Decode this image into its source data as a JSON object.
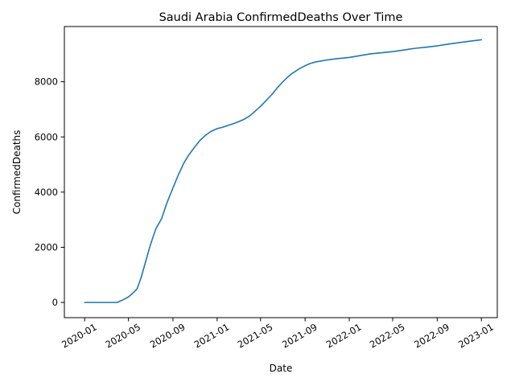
{
  "chart_data": {
    "type": "line",
    "title": "Saudi Arabia  ConfirmedDeaths Over Time",
    "xlabel": "Date",
    "ylabel": "ConfirmedDeaths",
    "x_scale": "date",
    "xlim": [
      "2019-11-06",
      "2023-02-14"
    ],
    "ylim": [
      -550,
      10000
    ],
    "x_ticks": [
      "2020-01",
      "2020-05",
      "2020-09",
      "2021-01",
      "2021-05",
      "2021-09",
      "2022-01",
      "2022-05",
      "2022-09",
      "2023-01"
    ],
    "y_ticks": [
      0,
      2000,
      4000,
      6000,
      8000
    ],
    "y_tick_labels": [
      "0",
      "2000",
      "4000",
      "6000",
      "8000"
    ],
    "grid": false,
    "series": [
      {
        "color": "#1f77b4",
        "points": [
          [
            "2020-01-01",
            0
          ],
          [
            "2020-02-15",
            0
          ],
          [
            "2020-03-31",
            0
          ],
          [
            "2020-04-15",
            90
          ],
          [
            "2020-05-01",
            200
          ],
          [
            "2020-05-15",
            360
          ],
          [
            "2020-05-25",
            500
          ],
          [
            "2020-06-05",
            900
          ],
          [
            "2020-06-20",
            1600
          ],
          [
            "2020-07-01",
            2100
          ],
          [
            "2020-07-15",
            2650
          ],
          [
            "2020-08-01",
            3050
          ],
          [
            "2020-08-15",
            3600
          ],
          [
            "2020-09-01",
            4150
          ],
          [
            "2020-09-15",
            4600
          ],
          [
            "2020-10-01",
            5050
          ],
          [
            "2020-10-15",
            5350
          ],
          [
            "2020-11-01",
            5650
          ],
          [
            "2020-11-15",
            5880
          ],
          [
            "2020-12-01",
            6070
          ],
          [
            "2020-12-15",
            6200
          ],
          [
            "2021-01-01",
            6300
          ],
          [
            "2021-01-15",
            6345
          ],
          [
            "2021-02-01",
            6420
          ],
          [
            "2021-02-15",
            6480
          ],
          [
            "2021-03-01",
            6550
          ],
          [
            "2021-03-15",
            6630
          ],
          [
            "2021-04-01",
            6760
          ],
          [
            "2021-04-15",
            6920
          ],
          [
            "2021-05-01",
            7110
          ],
          [
            "2021-05-15",
            7300
          ],
          [
            "2021-06-01",
            7530
          ],
          [
            "2021-06-15",
            7760
          ],
          [
            "2021-07-01",
            7990
          ],
          [
            "2021-07-15",
            8170
          ],
          [
            "2021-07-25",
            8280
          ],
          [
            "2021-08-01",
            8340
          ],
          [
            "2021-08-15",
            8460
          ],
          [
            "2021-09-01",
            8580
          ],
          [
            "2021-09-15",
            8660
          ],
          [
            "2021-10-01",
            8720
          ],
          [
            "2021-11-01",
            8790
          ],
          [
            "2021-12-01",
            8840
          ],
          [
            "2022-01-01",
            8880
          ],
          [
            "2022-02-01",
            8950
          ],
          [
            "2022-03-01",
            9010
          ],
          [
            "2022-04-01",
            9050
          ],
          [
            "2022-05-01",
            9090
          ],
          [
            "2022-06-01",
            9150
          ],
          [
            "2022-07-01",
            9210
          ],
          [
            "2022-08-01",
            9250
          ],
          [
            "2022-09-01",
            9300
          ],
          [
            "2022-10-01",
            9360
          ],
          [
            "2022-11-01",
            9420
          ],
          [
            "2022-12-01",
            9470
          ],
          [
            "2023-01-01",
            9520
          ]
        ]
      }
    ]
  }
}
